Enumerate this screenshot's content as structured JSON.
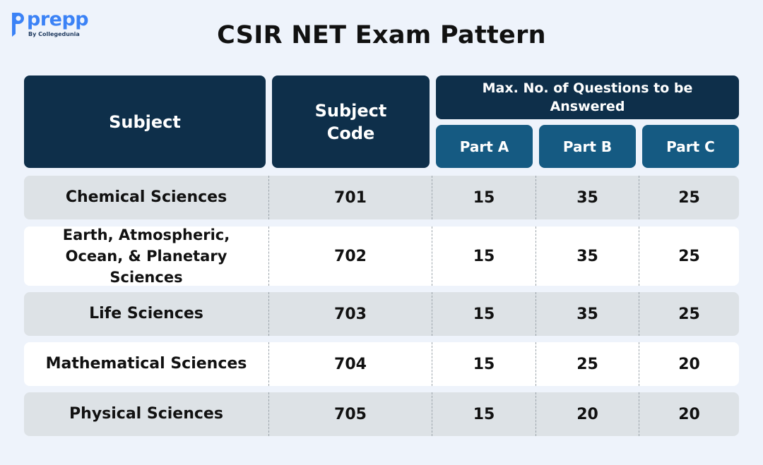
{
  "brand": {
    "name": "prepp",
    "tagline": "By Collegedunia",
    "color": "#3b82f6"
  },
  "title": "CSIR NET Exam Pattern",
  "table": {
    "headers": {
      "subject": "Subject",
      "code": "Subject Code",
      "max_questions": "Max. No. of Questions to be Answered",
      "part_a": "Part A",
      "part_b": "Part B",
      "part_c": "Part C"
    },
    "rows": [
      {
        "subject": "Chemical Sciences",
        "code": "701",
        "part_a": "15",
        "part_b": "35",
        "part_c": "25"
      },
      {
        "subject": "Earth, Atmospheric, Ocean, & Planetary Sciences",
        "code": "702",
        "part_a": "15",
        "part_b": "35",
        "part_c": "25"
      },
      {
        "subject": "Life Sciences",
        "code": "703",
        "part_a": "15",
        "part_b": "35",
        "part_c": "25"
      },
      {
        "subject": "Mathematical Sciences",
        "code": "704",
        "part_a": "15",
        "part_b": "25",
        "part_c": "20"
      },
      {
        "subject": "Physical Sciences",
        "code": "705",
        "part_a": "15",
        "part_b": "20",
        "part_c": "20"
      }
    ]
  },
  "colors": {
    "header_dark": "#0e2f4a",
    "header_light": "#155a82",
    "row_shade": "#dde2e6",
    "row_plain": "#ffffff",
    "background": "#eef3fb"
  }
}
